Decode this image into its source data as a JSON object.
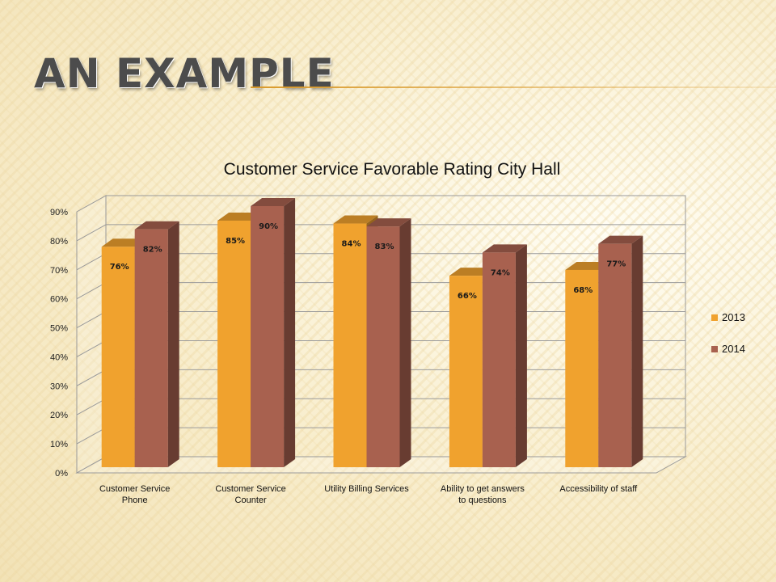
{
  "slide": {
    "title": "AN EXAMPLE"
  },
  "colors": {
    "series_2013": "#f0a22e",
    "series_2014": "#a8614f",
    "accent": "#d99a2b"
  },
  "chart_data": {
    "type": "bar",
    "title": "Customer Service Favorable Rating City Hall",
    "xlabel": "",
    "ylabel": "",
    "categories": [
      [
        "Customer Service",
        "Phone"
      ],
      [
        "Customer Service",
        "Counter"
      ],
      [
        "Utility Billing Services"
      ],
      [
        "Ability to get answers",
        "to questions"
      ],
      [
        "Accessibility of staff"
      ]
    ],
    "series": [
      {
        "name": "2013",
        "values": [
          76,
          85,
          84,
          66,
          68
        ],
        "labels": [
          "76%",
          "85%",
          "84%",
          "66%",
          "68%"
        ]
      },
      {
        "name": "2014",
        "values": [
          82,
          90,
          83,
          74,
          77
        ],
        "labels": [
          "82%",
          "90%",
          "83%",
          "74%",
          "77%"
        ]
      }
    ],
    "ylim": [
      0,
      90
    ],
    "yticks": [
      0,
      10,
      20,
      30,
      40,
      50,
      60,
      70,
      80,
      90
    ],
    "ytick_labels": [
      "0%",
      "10%",
      "20%",
      "30%",
      "40%",
      "50%",
      "60%",
      "70%",
      "80%",
      "90%"
    ],
    "grid": true,
    "legend": "right",
    "style": "3d-clustered-column"
  }
}
